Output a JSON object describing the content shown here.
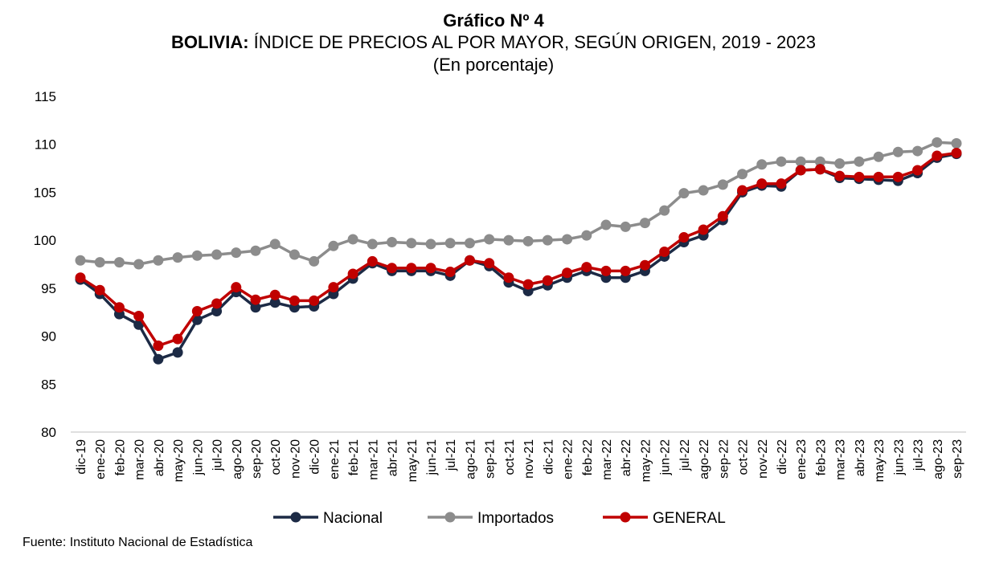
{
  "header": {
    "title": "Gráfico Nº 4",
    "subtitle_bold": "BOLIVIA:",
    "subtitle_rest": " ÍNDICE DE PRECIOS AL POR MAYOR, SEGÚN ORIGEN, 2019 - 2023",
    "unit": "(En porcentaje)"
  },
  "source": "Fuente: Instituto Nacional de Estadística",
  "colors": {
    "nacional": "#1c2a45",
    "importados": "#8c8c8c",
    "general": "#c00000"
  },
  "chart_data": {
    "type": "line",
    "title": "BOLIVIA: ÍNDICE DE PRECIOS AL POR MAYOR, SEGÚN ORIGEN, 2019 - 2023",
    "xlabel": "",
    "ylabel": "",
    "ylim": [
      80,
      115
    ],
    "yticks": [
      80,
      85,
      90,
      95,
      100,
      105,
      110,
      115
    ],
    "grid": false,
    "legend": "bottom",
    "categories": [
      "dic-19",
      "ene-20",
      "feb-20",
      "mar-20",
      "abr-20",
      "may-20",
      "jun-20",
      "jul-20",
      "ago-20",
      "sep-20",
      "oct-20",
      "nov-20",
      "dic-20",
      "ene-21",
      "feb-21",
      "mar-21",
      "abr-21",
      "may-21",
      "jun-21",
      "jul-21",
      "ago-21",
      "sep-21",
      "oct-21",
      "nov-21",
      "dic-21",
      "ene-22",
      "feb-22",
      "mar-22",
      "abr-22",
      "may-22",
      "jun-22",
      "jul-22",
      "ago-22",
      "sep-22",
      "oct-22",
      "nov-22",
      "dic-22",
      "ene-23",
      "feb-23",
      "mar-23",
      "abr-23",
      "may-23",
      "jun-23",
      "jul-23",
      "ago-23",
      "sep-23"
    ],
    "series": [
      {
        "name": "Nacional",
        "values": [
          95.9,
          94.4,
          92.3,
          91.2,
          87.6,
          88.3,
          91.7,
          92.6,
          94.6,
          93.0,
          93.5,
          93.0,
          93.1,
          94.4,
          96.0,
          97.6,
          96.8,
          96.8,
          96.8,
          96.3,
          97.9,
          97.3,
          95.6,
          94.7,
          95.3,
          96.1,
          96.8,
          96.1,
          96.1,
          96.8,
          98.3,
          99.8,
          100.5,
          102.1,
          105.0,
          105.7,
          105.6,
          107.3,
          107.4,
          106.5,
          106.4,
          106.3,
          106.2,
          107.0,
          108.6,
          109.0
        ]
      },
      {
        "name": "Importados",
        "values": [
          97.9,
          97.7,
          97.7,
          97.5,
          97.9,
          98.2,
          98.4,
          98.5,
          98.7,
          98.9,
          99.6,
          98.5,
          97.8,
          99.4,
          100.1,
          99.6,
          99.8,
          99.7,
          99.6,
          99.7,
          99.7,
          100.1,
          100.0,
          99.9,
          100.0,
          100.1,
          100.5,
          101.6,
          101.4,
          101.8,
          103.1,
          104.9,
          105.2,
          105.8,
          106.9,
          107.9,
          108.2,
          108.2,
          108.2,
          108.0,
          108.2,
          108.7,
          109.2,
          109.3,
          110.2,
          110.1
        ]
      },
      {
        "name": "GENERAL",
        "values": [
          96.1,
          94.8,
          93.0,
          92.1,
          89.0,
          89.7,
          92.6,
          93.4,
          95.1,
          93.8,
          94.3,
          93.7,
          93.7,
          95.1,
          96.5,
          97.8,
          97.1,
          97.1,
          97.1,
          96.7,
          97.9,
          97.6,
          96.1,
          95.4,
          95.8,
          96.6,
          97.2,
          96.8,
          96.8,
          97.4,
          98.8,
          100.3,
          101.1,
          102.5,
          105.2,
          105.9,
          105.9,
          107.3,
          107.4,
          106.7,
          106.6,
          106.6,
          106.6,
          107.3,
          108.8,
          109.1
        ]
      }
    ]
  }
}
